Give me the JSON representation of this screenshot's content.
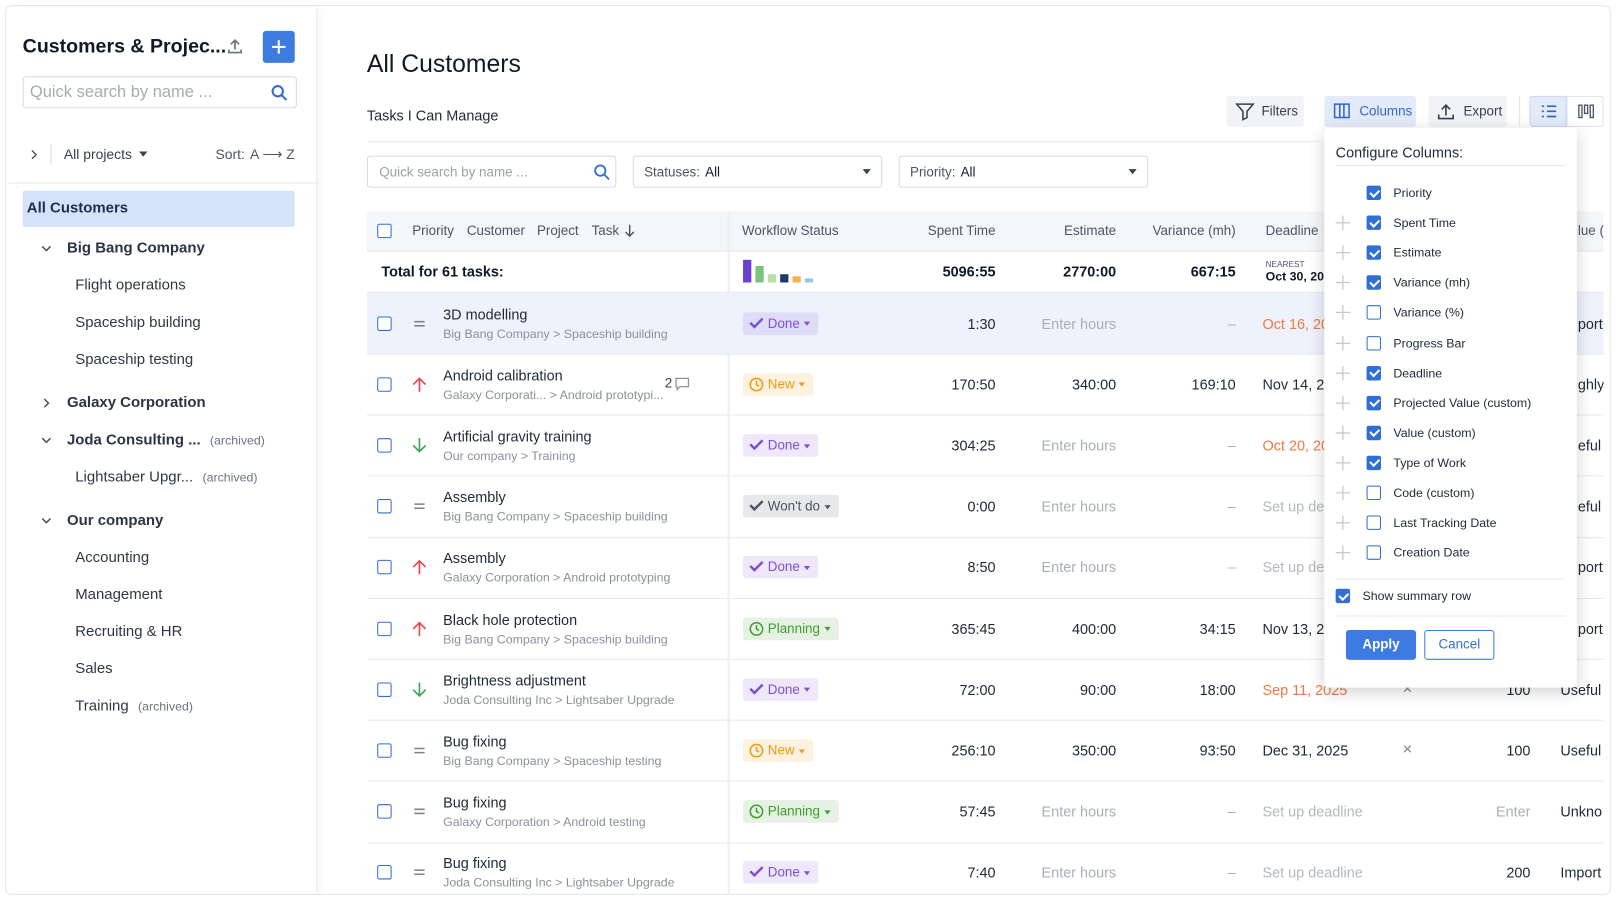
{
  "sidebar": {
    "title": "Customers & Projec...",
    "search_placeholder": "Quick search by name ...",
    "project_filter": "All projects",
    "sort_label": "Sort:",
    "sort_value": "A ⟶ Z",
    "selected": "All Customers",
    "tree": [
      {
        "label": "Big Bang Company",
        "level": 1,
        "expanded": true
      },
      {
        "label": "Flight operations",
        "level": 2
      },
      {
        "label": "Spaceship building",
        "level": 2
      },
      {
        "label": "Spaceship testing",
        "level": 2
      },
      {
        "label": "Galaxy Corporation",
        "level": 1,
        "expanded": false
      },
      {
        "label": "Joda Consulting ...",
        "level": 1,
        "expanded": true,
        "tag": "(archived)"
      },
      {
        "label": "Lightsaber Upgr...",
        "level": 2,
        "tag": "(archived)"
      },
      {
        "label": "Our company",
        "level": 1,
        "expanded": true
      },
      {
        "label": "Accounting",
        "level": 2
      },
      {
        "label": "Management",
        "level": 2
      },
      {
        "label": "Recruiting & HR",
        "level": 2
      },
      {
        "label": "Sales",
        "level": 2
      },
      {
        "label": "Training",
        "level": 2,
        "tag": "(archived)"
      }
    ]
  },
  "main": {
    "title": "All Customers",
    "subtitle": "Tasks I Can Manage",
    "buttons": [
      "Filters",
      "Columns",
      "Export"
    ],
    "search_placeholder": "Quick search by name ...",
    "filters": [
      {
        "label": "Statuses:",
        "value": "All"
      },
      {
        "label": "Priority:",
        "value": "All"
      }
    ]
  },
  "table": {
    "headers": {
      "priority": "Priority",
      "customer": "Customer",
      "project": "Project",
      "task": "Task",
      "status": "Workflow Status",
      "spent": "Spent Time",
      "estimate": "Estimate",
      "variance": "Variance (mh)",
      "deadline": "Deadline",
      "last": "lue ("
    },
    "total": {
      "label": "Total for 61 tasks:",
      "spent": "5096:55",
      "estimate": "2770:00",
      "variance": "667:15",
      "deadline_note": "NEAREST",
      "deadline": "Oct 30, 20"
    },
    "rows": [
      {
        "name": "3D modelling",
        "path": "Big Bang Company > Spaceship building",
        "priority_icon": "equal",
        "status": "Done",
        "status_color": "#7c4fd8",
        "status_icon": "check",
        "spent": "1:30",
        "estimate": "Enter hours",
        "variance": "–",
        "deadline": "Oct 16, 20",
        "deadline_color": "#f07b3f",
        "muted": [
          "estimate",
          "variance"
        ],
        "last": "port",
        "last_clipped": true,
        "highlight": true
      },
      {
        "name": "Android calibration",
        "path": "Galaxy Corporati... > Android prototypi...",
        "comments": "2",
        "priority_icon": "up",
        "status": "New",
        "status_color": "#f29a0f",
        "status_icon": "clock",
        "spent": "170:50",
        "estimate": "340:00",
        "variance": "169:10",
        "deadline": "Nov 14, 2",
        "deadline_color": "#1f2937",
        "muted": [],
        "last": "ghly",
        "last_clipped": true
      },
      {
        "name": "Artificial gravity training",
        "path": "Our company > Training",
        "priority_icon": "down",
        "status": "Done",
        "status_color": "#7c4fd8",
        "status_icon": "check",
        "spent": "304:25",
        "estimate": "Enter hours",
        "variance": "–",
        "deadline": "Oct 20, 20",
        "deadline_color": "#f07b3f",
        "muted": [
          "estimate",
          "variance"
        ],
        "last": "eful",
        "last_clipped": true
      },
      {
        "name": "Assembly",
        "path": "Big Bang Company > Spaceship building",
        "priority_icon": "equal",
        "status": "Won't do",
        "status_color": "#4b5563",
        "status_icon": "check",
        "spent": "0:00",
        "estimate": "Enter hours",
        "variance": "–",
        "deadline": "Set up de",
        "deadline_color": "#b3b8c2",
        "muted": [
          "estimate",
          "variance"
        ],
        "last": "eful",
        "last_clipped": true
      },
      {
        "name": "Assembly",
        "path": "Galaxy Corporation > Android prototyping",
        "priority_icon": "up",
        "status": "Done",
        "status_color": "#7c4fd8",
        "status_icon": "check",
        "spent": "8:50",
        "estimate": "Enter hours",
        "variance": "–",
        "deadline": "Set up de",
        "deadline_color": "#b3b8c2",
        "muted": [
          "estimate",
          "variance"
        ],
        "last": "port",
        "last_clipped": true
      },
      {
        "name": "Black hole protection",
        "path": "Big Bang Company > Spaceship building",
        "priority_icon": "up",
        "status": "Planning",
        "status_color": "#3f9d2f",
        "status_icon": "clock",
        "spent": "365:45",
        "estimate": "400:00",
        "variance": "34:15",
        "deadline": "Nov 13, 2",
        "deadline_color": "#1f2937",
        "muted": [],
        "last": "port",
        "last_clipped": true
      },
      {
        "name": "Brightness adjustment",
        "path": "Joda Consulting Inc > Lightsaber Upgrade",
        "priority_icon": "down",
        "status": "Done",
        "status_color": "#7c4fd8",
        "status_icon": "check",
        "spent": "72:00",
        "estimate": "90:00",
        "variance": "18:00",
        "deadline": "Sep 11, 2025",
        "deadline_color": "#f07b3f",
        "muted": [],
        "flag": "×",
        "value": "100",
        "last": "Useful"
      },
      {
        "name": "Bug fixing",
        "path": "Big Bang Company > Spaceship testing",
        "priority_icon": "equal",
        "status": "New",
        "status_color": "#f29a0f",
        "status_icon": "clock",
        "spent": "256:10",
        "estimate": "350:00",
        "variance": "93:50",
        "deadline": "Dec 31, 2025",
        "deadline_color": "#1f2937",
        "muted": [],
        "flag": "×",
        "value": "100",
        "last": "Useful"
      },
      {
        "name": "Bug fixing",
        "path": "Galaxy Corporation > Android testing",
        "priority_icon": "equal",
        "status": "Planning",
        "status_color": "#3f9d2f",
        "status_icon": "clock",
        "spent": "57:45",
        "estimate": "Enter hours",
        "variance": "–",
        "deadline": "Set up deadline",
        "deadline_color": "#b3b8c2",
        "muted": [
          "estimate",
          "variance",
          "value"
        ],
        "value": "Enter",
        "last": "Unkno"
      },
      {
        "name": "Bug fixing",
        "path": "Joda Consulting Inc > Lightsaber Upgrade",
        "priority_icon": "equal",
        "status": "Done",
        "status_color": "#7c4fd8",
        "status_icon": "check",
        "spent": "7:40",
        "estimate": "Enter hours",
        "variance": "–",
        "deadline": "Set up deadline",
        "deadline_color": "#b3b8c2",
        "muted": [
          "estimate",
          "variance"
        ],
        "value": "200",
        "last": "Import"
      }
    ]
  },
  "columns_popup": {
    "title": "Configure Columns:",
    "items": [
      {
        "label": "Priority",
        "checked": true,
        "draggable": false
      },
      {
        "label": "Spent Time",
        "checked": true,
        "draggable": true
      },
      {
        "label": "Estimate",
        "checked": true,
        "draggable": true
      },
      {
        "label": "Variance (mh)",
        "checked": true,
        "draggable": true
      },
      {
        "label": "Variance (%)",
        "checked": false,
        "draggable": true
      },
      {
        "label": "Progress Bar",
        "checked": false,
        "draggable": true
      },
      {
        "label": "Deadline",
        "checked": true,
        "draggable": true
      },
      {
        "label": "Projected Value (custom)",
        "checked": true,
        "draggable": true
      },
      {
        "label": "Value (custom)",
        "checked": true,
        "draggable": true
      },
      {
        "label": "Type of Work",
        "checked": true,
        "draggable": true
      },
      {
        "label": "Code (custom)",
        "checked": false,
        "draggable": true
      },
      {
        "label": "Last Tracking Date",
        "checked": false,
        "draggable": true
      },
      {
        "label": "Creation Date",
        "checked": false,
        "draggable": true
      }
    ],
    "summary": {
      "label": "Show summary row",
      "checked": true
    },
    "apply": "Apply",
    "cancel": "Cancel"
  }
}
